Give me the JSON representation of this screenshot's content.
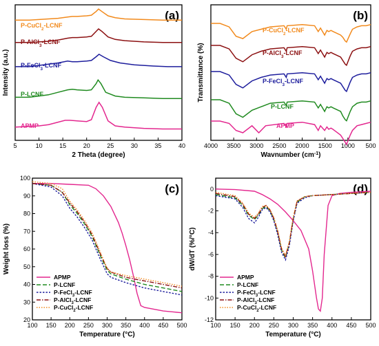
{
  "colors": {
    "APMP": "#e3268e",
    "P-LCNF": "#1f8a1f",
    "P-FeCl3-LCNF": "#1c1c9c",
    "P-AlCl3-LCNF": "#8b0f10",
    "P-CuCl2-LCNF": "#f28a1c"
  },
  "chart_data": [
    {
      "type": "line",
      "panel_label": "(a)",
      "xlabel": "2 Theta (degree)",
      "ylabel": "Intensity (a.u.)",
      "xlim": [
        5,
        40
      ],
      "x_ticks": [
        "5",
        "10",
        "15",
        "20",
        "25",
        "30",
        "35",
        "40"
      ],
      "y_ticks": [],
      "series_labels": [
        "P-CuCl2-LCNF",
        "P-AlCl3-LCNF",
        "P-FeCl3-LCNF",
        "P-LCNF",
        "APMP"
      ],
      "series": [
        {
          "name": "APMP",
          "offset": 0,
          "x": [
            5,
            8,
            10,
            12,
            14,
            15.5,
            16.5,
            18,
            20,
            21,
            22,
            22.6,
            23.3,
            24.5,
            26,
            28,
            32,
            36,
            40
          ],
          "y": [
            8,
            9,
            10,
            12,
            16,
            19,
            19,
            18,
            17,
            20,
            40,
            48,
            40,
            18,
            10,
            8,
            6,
            5,
            5
          ]
        },
        {
          "name": "P-LCNF",
          "offset": 58,
          "x": [
            5,
            8,
            10,
            12,
            14,
            16,
            17,
            18,
            20,
            21,
            22,
            22.4,
            23,
            24,
            26,
            28,
            32,
            36,
            40
          ],
          "y": [
            6,
            6,
            8,
            10,
            14,
            18,
            19,
            18,
            17,
            18,
            28,
            34,
            28,
            14,
            8,
            6,
            5,
            4,
            4
          ]
        },
        {
          "name": "P-FeCl3-LCNF",
          "offset": 115,
          "x": [
            5,
            8,
            10,
            12,
            14,
            16,
            17,
            18,
            20,
            21,
            22,
            22.6,
            23.5,
            25,
            27,
            30,
            34,
            37,
            40
          ],
          "y": [
            6,
            6,
            8,
            10,
            12,
            15,
            14,
            14,
            15,
            16,
            22,
            26,
            22,
            16,
            12,
            9,
            7,
            6,
            6
          ]
        },
        {
          "name": "P-AlCl3-LCNF",
          "offset": 160,
          "x": [
            5,
            8,
            10,
            12,
            14,
            16,
            17,
            18,
            20,
            21,
            22,
            22.5,
            23.2,
            24.5,
            26,
            28,
            32,
            36,
            40
          ],
          "y": [
            6,
            6,
            7,
            8,
            10,
            13,
            14,
            14,
            15,
            16,
            24,
            28,
            24,
            15,
            11,
            9,
            7,
            6,
            6
          ]
        },
        {
          "name": "P-CuCl2-LCNF",
          "offset": 204,
          "x": [
            5,
            8,
            10,
            12,
            14,
            16,
            17,
            18,
            20,
            21,
            22,
            22.5,
            23.2,
            24.5,
            26,
            28,
            32,
            36,
            40
          ],
          "y": [
            4,
            4,
            5,
            6,
            7,
            9,
            10,
            10,
            11,
            12,
            18,
            22,
            18,
            11,
            8,
            6,
            5,
            4,
            4
          ]
        }
      ]
    },
    {
      "type": "line",
      "panel_label": "(b)",
      "xlabel": "Wavnumber (cm",
      "xlabel_sup": "-1",
      "xlabel_end": ")",
      "ylabel": "Transmittance (%)",
      "xlim": [
        4000,
        500
      ],
      "x_ticks": [
        "4000",
        "3500",
        "3000",
        "2500",
        "2000",
        "1500",
        "1000",
        "500"
      ],
      "series_labels": [
        "P-CuCl2-LCNF",
        "P-AlCl3-LCNF",
        "P-FeCl3-LCNF",
        "P-LCNF",
        "APMP"
      ],
      "series": [
        {
          "name": "APMP",
          "offset": 0,
          "x": [
            4000,
            3800,
            3600,
            3450,
            3300,
            3100,
            2950,
            2800,
            2400,
            2350,
            2330,
            2000,
            1730,
            1650,
            1600,
            1510,
            1460,
            1420,
            1370,
            1330,
            1260,
            1160,
            1110,
            1060,
            1030,
            950,
            900,
            800,
            700,
            600,
            500
          ],
          "y": [
            0,
            0,
            -2,
            -8,
            -10,
            -4,
            -10,
            -4,
            -2,
            -5,
            -2,
            -1,
            -3,
            -8,
            -4,
            -8,
            -5,
            -7,
            -6,
            -7,
            -9,
            -12,
            -15,
            -18,
            -20,
            -12,
            -8,
            -4,
            -3,
            -2,
            -1
          ]
        },
        {
          "name": "P-LCNF",
          "offset": 1,
          "x": [
            4000,
            3800,
            3600,
            3450,
            3300,
            3100,
            2900,
            2700,
            2400,
            2350,
            2330,
            2000,
            1730,
            1650,
            1600,
            1510,
            1460,
            1420,
            1370,
            1320,
            1160,
            1110,
            1060,
            1030,
            950,
            900,
            800,
            700,
            600,
            500
          ],
          "y": [
            0,
            0,
            -3,
            -12,
            -15,
            -9,
            -6,
            -3,
            -2,
            -5,
            -2,
            -1,
            -2,
            -7,
            -4,
            -10,
            -6,
            -7,
            -6,
            -7,
            -10,
            -14,
            -17,
            -18,
            -10,
            -6,
            -3,
            -2,
            -2,
            -1
          ]
        },
        {
          "name": "P-FeCl3-LCNF",
          "offset": 2,
          "x": [
            4000,
            3800,
            3600,
            3450,
            3300,
            3100,
            2900,
            2700,
            2400,
            2350,
            2330,
            2000,
            1730,
            1650,
            1600,
            1510,
            1460,
            1420,
            1370,
            1320,
            1160,
            1110,
            1060,
            1030,
            950,
            900,
            800,
            700,
            600,
            500
          ],
          "y": [
            0,
            0,
            -3,
            -11,
            -14,
            -8,
            -5,
            -3,
            -2,
            -5,
            -2,
            -1,
            -2,
            -7,
            -4,
            -10,
            -6,
            -7,
            -6,
            -7,
            -10,
            -13,
            -16,
            -17,
            -9,
            -5,
            -3,
            -2,
            -2,
            -1
          ]
        },
        {
          "name": "P-AlCl3-LCNF",
          "offset": 3,
          "x": [
            4000,
            3800,
            3600,
            3450,
            3300,
            3100,
            2900,
            2700,
            2400,
            2350,
            2330,
            2000,
            1730,
            1650,
            1600,
            1510,
            1460,
            1420,
            1370,
            1320,
            1160,
            1110,
            1060,
            1030,
            950,
            900,
            800,
            700,
            600,
            500
          ],
          "y": [
            0,
            0,
            -3,
            -11,
            -14,
            -8,
            -5,
            -3,
            -2,
            -5,
            -2,
            -1,
            -2,
            -7,
            -4,
            -10,
            -6,
            -7,
            -6,
            -7,
            -10,
            -13,
            -16,
            -17,
            -9,
            -5,
            -3,
            -2,
            -2,
            -1
          ]
        },
        {
          "name": "P-CuCl2-LCNF",
          "offset": 4,
          "x": [
            4000,
            3800,
            3600,
            3450,
            3300,
            3100,
            2900,
            2700,
            2400,
            2350,
            2330,
            2000,
            1730,
            1650,
            1600,
            1510,
            1460,
            1420,
            1370,
            1320,
            1160,
            1110,
            1060,
            1030,
            950,
            900,
            800,
            700,
            600,
            500
          ],
          "y": [
            0,
            0,
            -3,
            -11,
            -13,
            -7,
            -5,
            -3,
            -2,
            -5,
            -2,
            -1,
            -2,
            -7,
            -4,
            -10,
            -6,
            -7,
            -6,
            -7,
            -10,
            -12,
            -15,
            -16,
            -9,
            -5,
            -3,
            -2,
            -2,
            -1
          ]
        }
      ]
    },
    {
      "type": "line",
      "panel_label": "(c)",
      "xlabel": "Temperature (°C)",
      "ylabel": "Weight loss (%)",
      "xlim": [
        100,
        500
      ],
      "ylim": [
        20,
        100
      ],
      "x_ticks": [
        "100",
        "150",
        "200",
        "250",
        "300",
        "350",
        "400",
        "450",
        "500"
      ],
      "y_ticks": [
        "20",
        "30",
        "40",
        "50",
        "60",
        "70",
        "80",
        "90",
        "100"
      ],
      "legend": [
        "APMP",
        "P-LCNF",
        "P-FeCl3-LCNF",
        "P-AlCl3-LCNF",
        "P-CuCl2-LCNF"
      ],
      "series": [
        {
          "name": "APMP",
          "dash": "",
          "x": [
            100,
            150,
            200,
            250,
            270,
            290,
            310,
            330,
            340,
            350,
            360,
            370,
            380,
            390,
            400,
            450,
            500
          ],
          "y": [
            97,
            97,
            96.5,
            96,
            94,
            90,
            84,
            75,
            69,
            62,
            54,
            45,
            35,
            28,
            27,
            25,
            24
          ]
        },
        {
          "name": "P-LCNF",
          "dash": "6,3",
          "x": [
            100,
            150,
            180,
            200,
            220,
            240,
            260,
            280,
            300,
            310,
            350,
            400,
            450,
            500
          ],
          "y": [
            97,
            96,
            92,
            85,
            80,
            74,
            67,
            57,
            48,
            46,
            43,
            40,
            38,
            36
          ]
        },
        {
          "name": "P-FeCl3-LCNF",
          "dash": "2.5,2",
          "x": [
            100,
            150,
            180,
            200,
            220,
            240,
            260,
            280,
            300,
            310,
            350,
            400,
            450,
            500
          ],
          "y": [
            97,
            95,
            90,
            83,
            78,
            72,
            65,
            55,
            46,
            44,
            41,
            38,
            36,
            34
          ]
        },
        {
          "name": "P-AlCl3-LCNF",
          "dash": "6,2,1.5,2",
          "x": [
            100,
            150,
            180,
            200,
            220,
            240,
            260,
            280,
            300,
            310,
            350,
            400,
            450,
            500
          ],
          "y": [
            97,
            96,
            92,
            86,
            81,
            75,
            68,
            58,
            49,
            47,
            44,
            42,
            40,
            38
          ]
        },
        {
          "name": "P-CuCl2-LCNF",
          "dash": "1.5,2",
          "x": [
            100,
            150,
            180,
            200,
            220,
            240,
            260,
            280,
            300,
            310,
            350,
            400,
            450,
            500
          ],
          "y": [
            98,
            97,
            94,
            87,
            82,
            76,
            69,
            59,
            49,
            47,
            45,
            43,
            41,
            39
          ]
        }
      ]
    },
    {
      "type": "line",
      "panel_label": "(d)",
      "xlabel": "Temperature (°C)",
      "ylabel": "dW/dT (%/°C)",
      "xlim": [
        100,
        500
      ],
      "ylim": [
        -12,
        1
      ],
      "x_ticks": [
        "100",
        "150",
        "200",
        "250",
        "300",
        "350",
        "400",
        "450",
        "500"
      ],
      "y_ticks": [
        "-12",
        "-10",
        "-8",
        "-6",
        "-4",
        "-2",
        "0"
      ],
      "legend": [
        "APMP",
        "P-LCNF",
        "P-FeCl3-LCNF",
        "P-AlCl3-LCNF",
        "P-CuCl2-LCNF"
      ],
      "series": [
        {
          "name": "APMP",
          "dash": "",
          "x": [
            100,
            150,
            200,
            220,
            240,
            260,
            280,
            300,
            320,
            340,
            350,
            360,
            365,
            370,
            375,
            380,
            390,
            400,
            420,
            450,
            500
          ],
          "y": [
            0,
            -0.05,
            -0.2,
            -0.5,
            -0.9,
            -1.4,
            -2.1,
            -2.9,
            -3.8,
            -5.5,
            -7.5,
            -10,
            -11,
            -11.2,
            -10,
            -6,
            -1.5,
            -0.6,
            -0.4,
            -0.3,
            -0.2
          ]
        },
        {
          "name": "P-LCNF",
          "dash": "6,3",
          "x": [
            100,
            150,
            170,
            185,
            200,
            210,
            220,
            230,
            240,
            250,
            260,
            270,
            280,
            290,
            300,
            310,
            330,
            350,
            400,
            450,
            500
          ],
          "y": [
            -0.5,
            -0.8,
            -1.5,
            -2.4,
            -2.8,
            -2.4,
            -1.8,
            -1.6,
            -2,
            -2.8,
            -4,
            -5.6,
            -6.3,
            -5,
            -2.8,
            -1.2,
            -0.7,
            -0.6,
            -0.5,
            -0.4,
            -0.3
          ]
        },
        {
          "name": "P-FeCl3-LCNF",
          "dash": "2.5,2",
          "x": [
            100,
            150,
            170,
            185,
            200,
            210,
            220,
            230,
            240,
            250,
            260,
            270,
            280,
            290,
            300,
            310,
            330,
            350,
            400,
            450,
            500
          ],
          "y": [
            -0.6,
            -0.9,
            -1.7,
            -2.7,
            -3.1,
            -2.6,
            -1.9,
            -1.7,
            -2.1,
            -2.9,
            -4.2,
            -5.8,
            -6.5,
            -5.2,
            -2.9,
            -1.3,
            -0.8,
            -0.6,
            -0.5,
            -0.4,
            -0.3
          ]
        },
        {
          "name": "P-AlCl3-LCNF",
          "dash": "6,2,1.5,2",
          "x": [
            100,
            150,
            170,
            185,
            200,
            210,
            220,
            230,
            240,
            250,
            260,
            270,
            280,
            290,
            300,
            310,
            330,
            350,
            400,
            450,
            500
          ],
          "y": [
            -0.4,
            -0.7,
            -1.4,
            -2.3,
            -2.7,
            -2.3,
            -1.7,
            -1.5,
            -1.9,
            -2.7,
            -3.9,
            -5.5,
            -6.2,
            -4.9,
            -2.7,
            -1.1,
            -0.7,
            -0.6,
            -0.5,
            -0.4,
            -0.3
          ]
        },
        {
          "name": "P-CuCl2-LCNF",
          "dash": "1.5,2",
          "x": [
            100,
            150,
            170,
            185,
            200,
            210,
            220,
            230,
            240,
            250,
            260,
            270,
            280,
            290,
            300,
            310,
            330,
            350,
            400,
            450,
            500
          ],
          "y": [
            -0.3,
            -0.6,
            -1.3,
            -2.2,
            -2.6,
            -2.2,
            -1.6,
            -1.5,
            -1.9,
            -2.6,
            -3.8,
            -5.4,
            -6.1,
            -4.8,
            -2.6,
            -1.1,
            -0.7,
            -0.6,
            -0.5,
            -0.4,
            -0.3
          ]
        }
      ]
    }
  ]
}
